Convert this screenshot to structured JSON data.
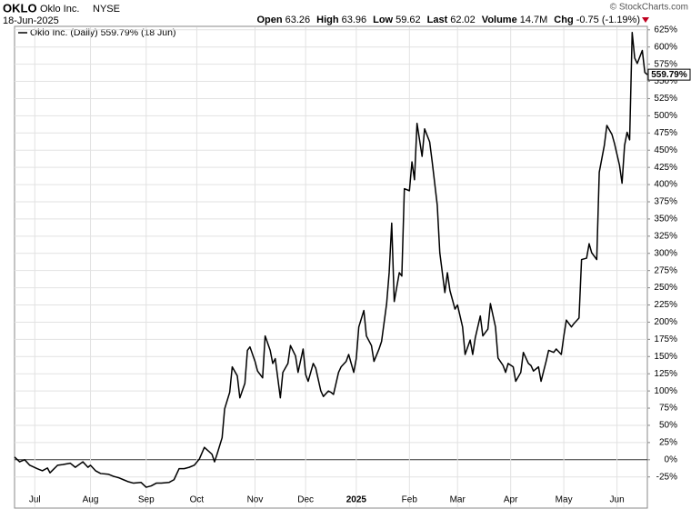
{
  "chart_data": {
    "type": "line",
    "symbol": "OKLO",
    "name": "Oklo Inc.",
    "exchange": "NYSE",
    "date": "18-Jun-2025",
    "credit": "© StockCharts.com",
    "quote": [
      {
        "label": "Open",
        "value": 63.26
      },
      {
        "label": "High",
        "value": 63.96
      },
      {
        "label": "Low",
        "value": 59.62
      },
      {
        "label": "Last",
        "value": 62.02
      },
      {
        "label": "Volume",
        "value": "14.7M"
      },
      {
        "label": "Chg",
        "value": "-0.75 (-1.19%)"
      }
    ],
    "last_value_label": "559.79%",
    "xlim": [
      0,
      250
    ],
    "xticks": [
      {
        "value": 8,
        "label": "Jul"
      },
      {
        "value": 30,
        "label": "Aug"
      },
      {
        "value": 52,
        "label": "Sep"
      },
      {
        "value": 72,
        "label": "Oct"
      },
      {
        "value": 95,
        "label": "Nov"
      },
      {
        "value": 115,
        "label": "Dec"
      },
      {
        "value": 135,
        "label": "2025"
      },
      {
        "value": 156,
        "label": "Feb"
      },
      {
        "value": 175,
        "label": "Mar"
      },
      {
        "value": 196,
        "label": "Apr"
      },
      {
        "value": 217,
        "label": "May"
      },
      {
        "value": 238,
        "label": "Jun"
      }
    ],
    "ylim": [
      -65,
      630
    ],
    "yticks": [
      {
        "value": -25,
        "label": "-25%"
      },
      {
        "value": 0,
        "label": "0%"
      },
      {
        "value": 25,
        "label": "25%"
      },
      {
        "value": 50,
        "label": "50%"
      },
      {
        "value": 75,
        "label": "75%"
      },
      {
        "value": 100,
        "label": "100%"
      },
      {
        "value": 125,
        "label": "125%"
      },
      {
        "value": 150,
        "label": "150%"
      },
      {
        "value": 175,
        "label": "175%"
      },
      {
        "value": 200,
        "label": "200%"
      },
      {
        "value": 225,
        "label": "225%"
      },
      {
        "value": 250,
        "label": "250%"
      },
      {
        "value": 275,
        "label": "275%"
      },
      {
        "value": 300,
        "label": "300%"
      },
      {
        "value": 325,
        "label": "325%"
      },
      {
        "value": 350,
        "label": "350%"
      },
      {
        "value": 375,
        "label": "375%"
      },
      {
        "value": 400,
        "label": "400%"
      },
      {
        "value": 425,
        "label": "425%"
      },
      {
        "value": 450,
        "label": "450%"
      },
      {
        "value": 475,
        "label": "475%"
      },
      {
        "value": 500,
        "label": "500%"
      },
      {
        "value": 525,
        "label": "525%"
      },
      {
        "value": 550,
        "label": "550%"
      },
      {
        "value": 575,
        "label": "575%"
      },
      {
        "value": 600,
        "label": "600%"
      },
      {
        "value": 625,
        "label": "625%"
      }
    ],
    "grid": true,
    "x": [
      0,
      2,
      4,
      6,
      9,
      11,
      13,
      14,
      17,
      19,
      22,
      24,
      27,
      29,
      30,
      32,
      34,
      37,
      39,
      41,
      43,
      45,
      47,
      50,
      52,
      54,
      56,
      58,
      61,
      63,
      65,
      67,
      69,
      71,
      73,
      75,
      78,
      79,
      80,
      82,
      83,
      85,
      86,
      88,
      89,
      91,
      92,
      93,
      95,
      96,
      98,
      99,
      101,
      102,
      103,
      105,
      106,
      108,
      109,
      111,
      112,
      114,
      115,
      116,
      118,
      119,
      121,
      122,
      124,
      125,
      126,
      128,
      129,
      131,
      132,
      134,
      135,
      136,
      138,
      139,
      141,
      142,
      144,
      145,
      147,
      148,
      149,
      150,
      152,
      153,
      154,
      156,
      157,
      158,
      159,
      161,
      162,
      164,
      165,
      167,
      168,
      170,
      171,
      172,
      174,
      175,
      177,
      178,
      180,
      181,
      182,
      184,
      185,
      187,
      188,
      190,
      191,
      193,
      194,
      195,
      197,
      198,
      200,
      201,
      203,
      204,
      205,
      207,
      208,
      210,
      211,
      213,
      214,
      216,
      217,
      218,
      220,
      221,
      223,
      224,
      226,
      227,
      228,
      230,
      231,
      233,
      234,
      236,
      237,
      239,
      240,
      241,
      242,
      243,
      244,
      245,
      246,
      248,
      249,
      250
    ],
    "series": [
      {
        "name": "Oklo Inc. (Daily) 559.79% (18 Jun)",
        "color": "#000000",
        "values": [
          4,
          -3,
          0,
          -8,
          -13,
          -16,
          -12,
          -19,
          -8,
          -7,
          -5,
          -11,
          -3,
          -11,
          -8,
          -16,
          -20,
          -21,
          -24,
          -26,
          -29,
          -32,
          -34,
          -33,
          -40,
          -38,
          -34,
          -34,
          -33,
          -29,
          -13,
          -13,
          -11,
          -8,
          1,
          18,
          8,
          -3,
          8,
          32,
          74,
          98,
          135,
          122,
          90,
          111,
          159,
          164,
          143,
          129,
          119,
          180,
          159,
          140,
          147,
          90,
          127,
          140,
          166,
          151,
          127,
          161,
          124,
          114,
          140,
          133,
          100,
          92,
          100,
          98,
          95,
          127,
          135,
          143,
          153,
          127,
          147,
          193,
          217,
          180,
          166,
          143,
          161,
          172,
          227,
          272,
          344,
          230,
          272,
          267,
          394,
          391,
          433,
          407,
          489,
          441,
          481,
          462,
          433,
          370,
          301,
          243,
          272,
          246,
          219,
          225,
          193,
          153,
          174,
          153,
          177,
          209,
          180,
          190,
          227,
          193,
          148,
          137,
          127,
          140,
          135,
          114,
          127,
          156,
          140,
          137,
          129,
          135,
          114,
          143,
          159,
          156,
          161,
          153,
          180,
          203,
          193,
          198,
          206,
          291,
          293,
          314,
          301,
          291,
          418,
          457,
          486,
          473,
          460,
          428,
          402,
          457,
          476,
          465,
          621,
          584,
          576,
          595,
          563,
          559.79
        ]
      }
    ]
  }
}
